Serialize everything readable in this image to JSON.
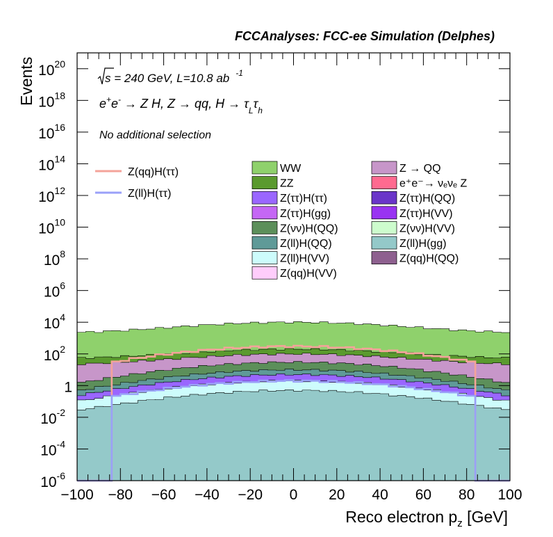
{
  "title": "FCCAnalyses: FCC-ee Simulation (Delphes)",
  "annotations": {
    "energy_sqrt": "s",
    "energy_rest": " = 240 GeV, L=10.8 ab",
    "energy_exp": "-1",
    "process": "e⁺e⁻ → Z H, Z → qq, H → τ_L τ_h",
    "process_parts": {
      "a": "e",
      "a_sup": "+",
      "b": "e",
      "b_sup": "-",
      "c": " → Z H, Z  → qq, H  → τ",
      "c_sub": "L",
      "d": "τ",
      "d_sub": "h"
    },
    "selection": "No additional selection"
  },
  "chart_data": {
    "type": "histogram",
    "xlabel": "Reco electron p",
    "xlabel_sub": "z",
    "xlabel_unit": " [GeV]",
    "ylabel": "Events",
    "xlim": [
      -100,
      100
    ],
    "ylim": [
      1e-06,
      1e+21
    ],
    "yscale": "log",
    "x_ticks": [
      -100,
      -80,
      -60,
      -40,
      -20,
      0,
      20,
      40,
      60,
      80,
      100
    ],
    "x_tick_labels": [
      "−100",
      "−80",
      "−60",
      "−40",
      "−20",
      "0",
      "20",
      "40",
      "60",
      "80",
      "100"
    ],
    "y_ticks": [
      {
        "value": 1e+20,
        "base": "10",
        "exp": "20"
      },
      {
        "value": 1e+18,
        "base": "10",
        "exp": "18"
      },
      {
        "value": 1e+16,
        "base": "10",
        "exp": "16"
      },
      {
        "value": 100000000000000.0,
        "base": "10",
        "exp": "14"
      },
      {
        "value": 1000000000000.0,
        "base": "10",
        "exp": "12"
      },
      {
        "value": 10000000000.0,
        "base": "10",
        "exp": "10"
      },
      {
        "value": 100000000.0,
        "base": "10",
        "exp": "8"
      },
      {
        "value": 1000000.0,
        "base": "10",
        "exp": "6"
      },
      {
        "value": 10000.0,
        "base": "10",
        "exp": "4"
      },
      {
        "value": 100.0,
        "base": "10",
        "exp": "2"
      },
      {
        "value": 1,
        "base": "1",
        "exp": ""
      },
      {
        "value": 0.01,
        "base": "10",
        "exp": "-2"
      },
      {
        "value": 0.0001,
        "base": "10",
        "exp": "-4"
      },
      {
        "value": 1e-06,
        "base": "10",
        "exp": "-6"
      }
    ],
    "legend_placement": "top, two columns for backgrounds, signal lines at left",
    "stacked_envelopes": [
      {
        "name": "WW",
        "color": "#8fd16c",
        "peak": 10000,
        "edge": 2000
      },
      {
        "name": "ZZ",
        "color": "#5a9a2e",
        "peak": 200,
        "edge": 50
      },
      {
        "name": "Z → QQ",
        "color": "#c796c9",
        "peak": 100,
        "edge": 20
      },
      {
        "name": "Z(νν)H(QQ)",
        "color": "#5c8f5a",
        "peak": 30,
        "edge": 0.3
      },
      {
        "name": "Z(ll)H(QQ)",
        "color": "#5f9a98",
        "peak": 10,
        "edge": 0.1
      },
      {
        "name": "Z(ττ)H(ττ)",
        "color": "#9a66ff",
        "peak": 5,
        "edge": 0.05
      },
      {
        "name": "Z(ll)H(VV)",
        "color": "#cdfcfc",
        "peak": 2,
        "edge": 0.03
      },
      {
        "name": "Z(ll)H(gg)",
        "color": "#94c9c9",
        "peak": 0.5,
        "edge": 0.01
      }
    ],
    "series": [
      {
        "name": "Z(qq)H(ττ)",
        "color": "#f4a39a",
        "style": "line",
        "peak": 300,
        "edge": 0.03
      },
      {
        "name": "Z(ll)H(ττ)",
        "color": "#9aa0f8",
        "style": "line",
        "peak": 2,
        "edge": 0.005
      }
    ]
  },
  "legend": {
    "signals": [
      {
        "label": "Z(qq)H(ττ)",
        "color": "#f4a39a"
      },
      {
        "label": "Z(ll)H(ττ)",
        "color": "#9aa0f8"
      }
    ],
    "col1": [
      {
        "label": "WW",
        "color": "#8fd16c"
      },
      {
        "label": "ZZ",
        "color": "#5a9a2e"
      },
      {
        "label": "Z(ττ)H(ττ)",
        "color": "#9a66ff"
      },
      {
        "label": "Z(ττ)H(gg)",
        "color": "#c567f5"
      },
      {
        "label": "Z(νν)H(QQ)",
        "color": "#5c8f5a"
      },
      {
        "label": "Z(ll)H(QQ)",
        "color": "#5f9a98"
      },
      {
        "label": "Z(ll)H(VV)",
        "color": "#cdfcfc"
      },
      {
        "label": "Z(qq)H(VV)",
        "color": "#ffcdfb"
      }
    ],
    "col2": [
      {
        "label": "Z → QQ",
        "color": "#c796c9"
      },
      {
        "label": "e⁺e⁻→ νₑνₑ Z",
        "color": "#ff6a90"
      },
      {
        "label": "Z(ττ)H(QQ)",
        "color": "#6a35c9"
      },
      {
        "label": "Z(ττ)H(VV)",
        "color": "#9933f2"
      },
      {
        "label": "Z(νν)H(VV)",
        "color": "#cdfccd"
      },
      {
        "label": "Z(ll)H(gg)",
        "color": "#94c9c9"
      },
      {
        "label": "Z(qq)H(QQ)",
        "color": "#8e608f"
      }
    ]
  }
}
